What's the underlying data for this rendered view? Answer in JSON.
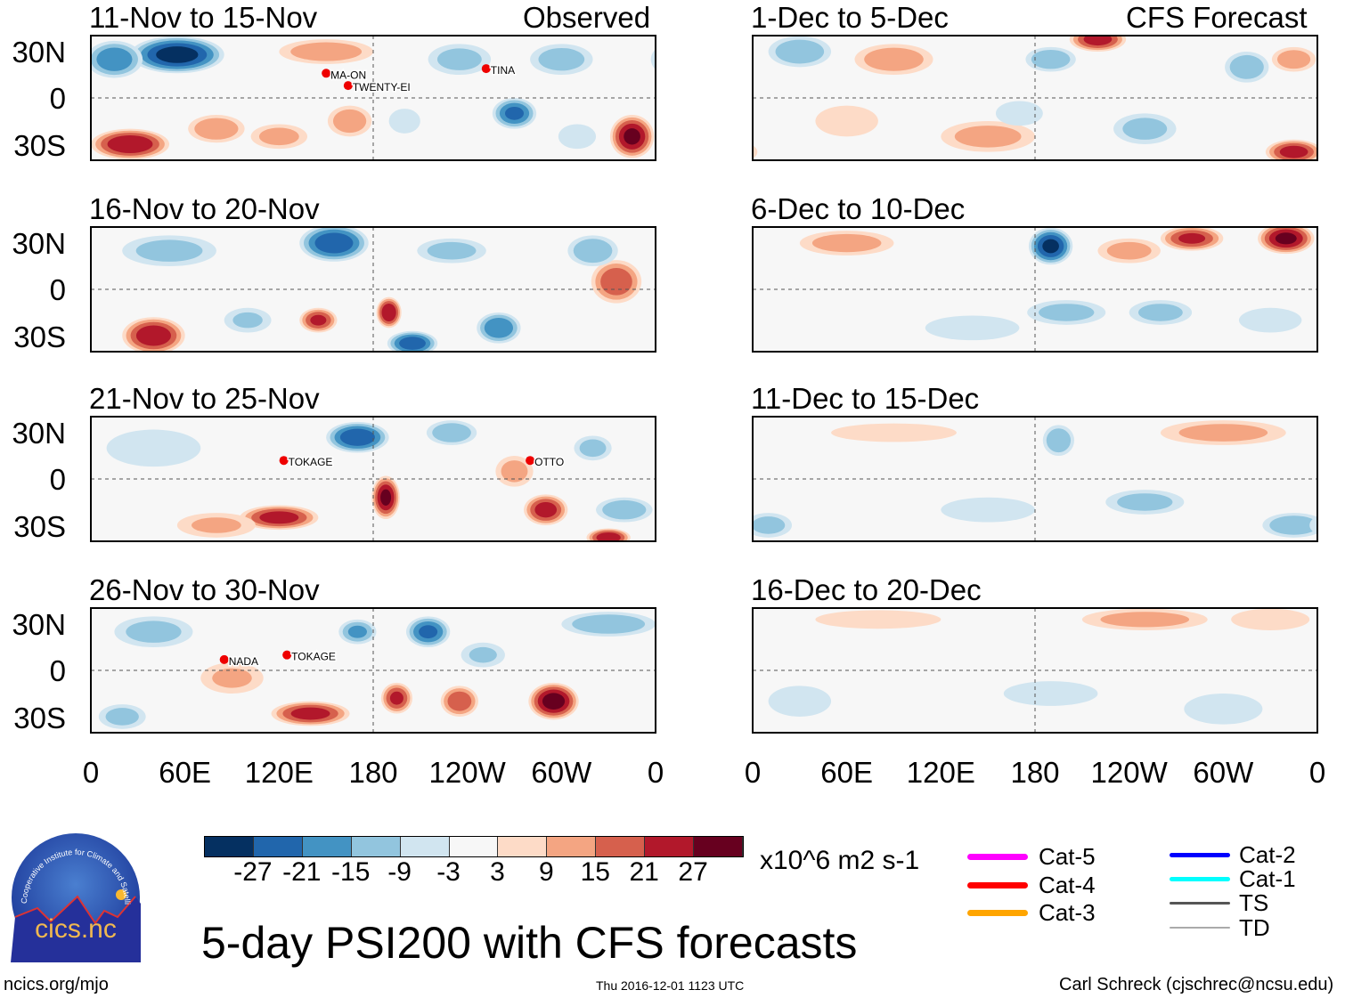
{
  "header": {
    "left_label": "Observed",
    "right_label": "CFS Forecast"
  },
  "lat_labels": [
    "30N",
    "0",
    "30S"
  ],
  "lon_labels": [
    "0",
    "60E",
    "120E",
    "180",
    "120W",
    "60W",
    "0"
  ],
  "colorbar": {
    "labels": [
      "-27",
      "-21",
      "-15",
      "-9",
      "-3",
      "3",
      "9",
      "15",
      "21",
      "27"
    ],
    "colors": [
      "#053061",
      "#2166ac",
      "#4393c3",
      "#92c5de",
      "#d1e5f0",
      "#f7f7f7",
      "#fddbc7",
      "#f4a582",
      "#d6604d",
      "#b2182b",
      "#67001f"
    ],
    "units": "x10^6 m2 s-1"
  },
  "legend": [
    {
      "label": "Cat-5",
      "color": "#ff00ff"
    },
    {
      "label": "Cat-4",
      "color": "#ff0000"
    },
    {
      "label": "Cat-3",
      "color": "#ffa500"
    },
    {
      "label": "Cat-2",
      "color": "#0000ff"
    },
    {
      "label": "Cat-1",
      "color": "#00ffff"
    },
    {
      "label": "TS",
      "color": "#555555"
    },
    {
      "label": "TD",
      "color": "#aaaaaa"
    }
  ],
  "main_title": "5-day PSI200 with CFS forecasts",
  "logo": {
    "text": "cics.nc",
    "ring_text": "Cooperative Institute for Climate and Satellites"
  },
  "footer": {
    "url": "ncics.org/mjo",
    "timestamp": "Thu 2016-12-01 1123 UTC",
    "author": "Carl Schreck (cjschrec@ncsu.edu)"
  },
  "chart_data": {
    "type": "heatmap",
    "title": "5-day PSI200 with CFS forecasts",
    "variable": "200-hPa streamfunction anomaly",
    "units": "x10^6 m2 s-1",
    "levels": [
      -27,
      -21,
      -15,
      -9,
      -3,
      3,
      9,
      15,
      21,
      27
    ],
    "lon_range": [
      0,
      360
    ],
    "lat_range": [
      -40,
      40
    ],
    "panels": [
      {
        "title": "11-Nov to 15-Nov",
        "kind": "observed",
        "anomalies": [
          [
            55,
            28,
            -30,
            30,
            12
          ],
          [
            15,
            25,
            -20,
            18,
            12
          ],
          [
            25,
            -30,
            27,
            25,
            10
          ],
          [
            80,
            -20,
            15,
            18,
            9
          ],
          [
            120,
            -25,
            12,
            18,
            8
          ],
          [
            165,
            -15,
            14,
            14,
            10
          ],
          [
            270,
            -10,
            -22,
            14,
            10
          ],
          [
            345,
            -25,
            28,
            14,
            14
          ],
          [
            300,
            25,
            -13,
            20,
            10
          ],
          [
            150,
            30,
            14,
            30,
            8
          ],
          [
            235,
            25,
            -12,
            20,
            10
          ],
          [
            200,
            -15,
            -9,
            10,
            8
          ],
          [
            310,
            -25,
            -9,
            12,
            8
          ]
        ],
        "storms": [
          {
            "name": "MA-ON",
            "lon": 150,
            "lat": 16
          },
          {
            "name": "TWENTY-EI",
            "lon": 164,
            "lat": 8
          },
          {
            "name": "TINA",
            "lon": 252,
            "lat": 19
          }
        ]
      },
      {
        "title": "16-Nov to 20-Nov",
        "kind": "observed",
        "anomalies": [
          [
            155,
            30,
            -26,
            22,
            12
          ],
          [
            40,
            -30,
            26,
            20,
            12
          ],
          [
            190,
            -15,
            27,
            8,
            10
          ],
          [
            145,
            -20,
            22,
            12,
            8
          ],
          [
            205,
            -35,
            -25,
            16,
            8
          ],
          [
            260,
            -25,
            -21,
            14,
            10
          ],
          [
            335,
            5,
            20,
            16,
            14
          ],
          [
            320,
            25,
            -15,
            16,
            10
          ],
          [
            50,
            25,
            -12,
            30,
            10
          ],
          [
            230,
            25,
            -12,
            22,
            8
          ],
          [
            100,
            -20,
            -10,
            15,
            8
          ]
        ],
        "storms": []
      },
      {
        "title": "21-Nov to 25-Nov",
        "kind": "observed",
        "anomalies": [
          [
            170,
            27,
            -26,
            20,
            10
          ],
          [
            188,
            -12,
            28,
            9,
            14
          ],
          [
            120,
            -25,
            24,
            25,
            8
          ],
          [
            290,
            -20,
            24,
            14,
            10
          ],
          [
            330,
            -38,
            26,
            14,
            6
          ],
          [
            230,
            30,
            -15,
            16,
            8
          ],
          [
            270,
            5,
            12,
            12,
            10
          ],
          [
            340,
            -20,
            -15,
            18,
            8
          ],
          [
            40,
            20,
            -9,
            30,
            12
          ],
          [
            320,
            20,
            -12,
            12,
            8
          ],
          [
            80,
            -30,
            10,
            25,
            8
          ]
        ],
        "storms": [
          {
            "name": "TOKAGE",
            "lon": 123,
            "lat": 12
          },
          {
            "name": "OTTO",
            "lon": 280,
            "lat": 12
          }
        ]
      },
      {
        "title": "26-Nov to 30-Nov",
        "kind": "observed",
        "anomalies": [
          [
            295,
            -20,
            30,
            16,
            12
          ],
          [
            140,
            -28,
            24,
            25,
            8
          ],
          [
            195,
            -18,
            22,
            10,
            10
          ],
          [
            235,
            -20,
            20,
            12,
            10
          ],
          [
            215,
            25,
            -22,
            14,
            10
          ],
          [
            170,
            25,
            -16,
            12,
            8
          ],
          [
            330,
            30,
            -15,
            30,
            8
          ],
          [
            40,
            25,
            -12,
            25,
            10
          ],
          [
            20,
            -30,
            -12,
            15,
            8
          ],
          [
            90,
            -5,
            10,
            20,
            10
          ],
          [
            250,
            10,
            -10,
            14,
            8
          ]
        ],
        "storms": [
          {
            "name": "NADA",
            "lon": 85,
            "lat": 7
          },
          {
            "name": "TOKAGE",
            "lon": 125,
            "lat": 10
          }
        ]
      },
      {
        "title": "1-Dec to 5-Dec",
        "kind": "forecast",
        "anomalies": [
          [
            220,
            38,
            24,
            18,
            8
          ],
          [
            30,
            30,
            -15,
            20,
            10
          ],
          [
            90,
            25,
            14,
            25,
            10
          ],
          [
            190,
            25,
            -15,
            16,
            8
          ],
          [
            315,
            20,
            -15,
            14,
            10
          ],
          [
            345,
            25,
            14,
            14,
            8
          ],
          [
            345,
            -35,
            24,
            18,
            8
          ],
          [
            150,
            -25,
            12,
            30,
            10
          ],
          [
            250,
            -20,
            -12,
            20,
            10
          ],
          [
            170,
            -10,
            -9,
            15,
            8
          ],
          [
            60,
            -15,
            9,
            20,
            10
          ]
        ],
        "storms": []
      },
      {
        "title": "6-Dec to 10-Dec",
        "kind": "forecast",
        "anomalies": [
          [
            190,
            28,
            -28,
            14,
            12
          ],
          [
            340,
            33,
            28,
            18,
            10
          ],
          [
            280,
            33,
            22,
            20,
            8
          ],
          [
            60,
            30,
            13,
            30,
            8
          ],
          [
            240,
            25,
            12,
            20,
            8
          ],
          [
            200,
            -15,
            -12,
            25,
            8
          ],
          [
            260,
            -15,
            -12,
            20,
            8
          ],
          [
            140,
            -25,
            -9,
            30,
            8
          ],
          [
            330,
            -20,
            -9,
            20,
            8
          ]
        ],
        "storms": []
      },
      {
        "title": "11-Dec to 15-Dec",
        "kind": "forecast",
        "anomalies": [
          [
            195,
            25,
            -15,
            10,
            10
          ],
          [
            300,
            30,
            12,
            40,
            8
          ],
          [
            90,
            30,
            9,
            40,
            6
          ],
          [
            250,
            -15,
            -12,
            25,
            8
          ],
          [
            345,
            -30,
            -15,
            20,
            8
          ],
          [
            10,
            -30,
            -12,
            15,
            8
          ],
          [
            150,
            -20,
            -6,
            30,
            8
          ]
        ],
        "storms": []
      },
      {
        "title": "16-Dec to 20-Dec",
        "kind": "forecast",
        "anomalies": [
          [
            250,
            33,
            12,
            40,
            7
          ],
          [
            330,
            33,
            9,
            25,
            7
          ],
          [
            80,
            33,
            6,
            40,
            6
          ],
          [
            190,
            -15,
            -6,
            30,
            8
          ],
          [
            300,
            -25,
            -8,
            25,
            10
          ],
          [
            30,
            -20,
            -6,
            20,
            10
          ]
        ],
        "storms": []
      }
    ]
  }
}
